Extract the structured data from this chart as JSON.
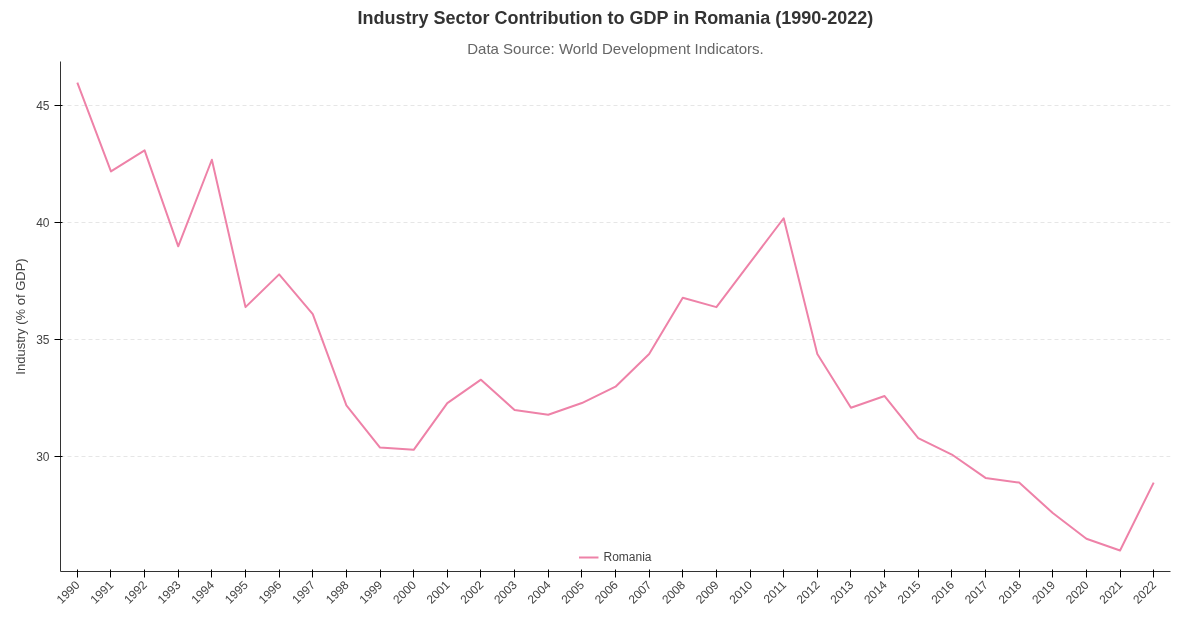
{
  "chart_data": {
    "type": "line",
    "title": "Industry Sector Contribution to GDP in Romania (1990-2022)",
    "subtitle": "Data Source: World Development Indicators.",
    "ylabel": "Industry (% of GDP)",
    "categories": [
      "1990",
      "1991",
      "1992",
      "1993",
      "1994",
      "1995",
      "1996",
      "1997",
      "1998",
      "1999",
      "2000",
      "2001",
      "2002",
      "2003",
      "2004",
      "2005",
      "2006",
      "2007",
      "2008",
      "2009",
      "2010",
      "2011",
      "2012",
      "2013",
      "2014",
      "2015",
      "2016",
      "2017",
      "2018",
      "2019",
      "2020",
      "2021",
      "2022"
    ],
    "series": [
      {
        "name": "Romania",
        "color": "#ee82a8",
        "values": [
          46.0,
          42.2,
          43.1,
          39.0,
          42.7,
          36.4,
          37.8,
          36.1,
          32.2,
          30.4,
          30.3,
          32.3,
          33.3,
          32.0,
          31.8,
          32.3,
          33.0,
          34.4,
          36.8,
          36.4,
          38.3,
          40.2,
          34.4,
          32.1,
          32.6,
          30.8,
          30.1,
          29.1,
          28.9,
          27.6,
          26.5,
          26.0,
          28.9
        ]
      }
    ],
    "ylim": [
      25.1,
      46.9
    ],
    "yticks": [
      30,
      35,
      40,
      45
    ],
    "grid": "y",
    "legend": "bottom",
    "marker": "none",
    "line_style": "solid"
  }
}
